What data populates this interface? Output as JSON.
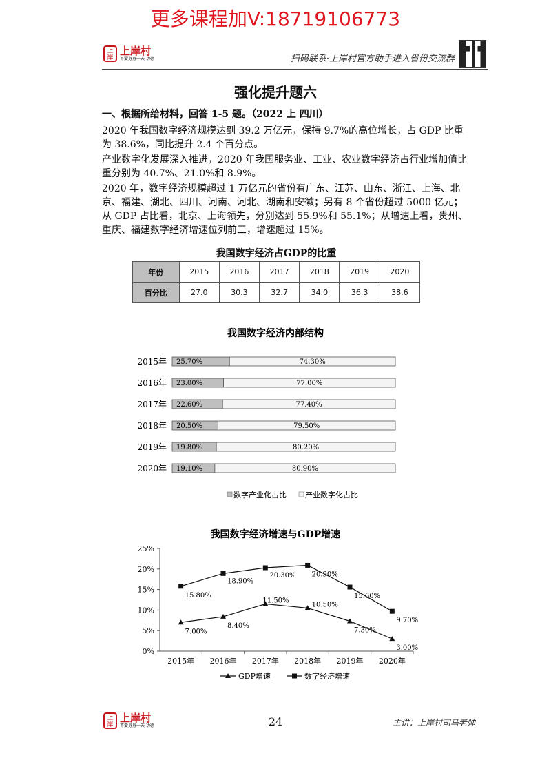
{
  "watermark": "更多课程加V:18719106773",
  "header": {
    "logo_text": "上岸村",
    "logo_sub": "不要身身一天 功德",
    "note": "扫码联系·上岸村官方助手进入省份交流群"
  },
  "title": "强化提升题六",
  "question_head": "一、根据所给材料，回答 1-5 题。（2022 上 四川）",
  "paragraphs": [
    "2020 年我国数字经济规模达到 39.2 万亿元，保持 9.7%的高位增长，占 GDP 比重为 38.6%，同比提升 2.4 个百分点。",
    "产业数字化发展深入推进，2020 年我国服务业、工业、农业数字经济占行业增加值比重分别为 40.7%、21.0%和 8.9%。",
    "2020 年，数字经济规模超过 1 万亿元的省份有广东、江苏、山东、浙江、上海、北京、福建、湖北、四川、河南、河北、湖南和安徽；另有 8 个省份超过 5000 亿元；从 GDP 占比看，北京、上海领先，分别达到 55.9%和 55.1%；从增速上看，贵州、重庆、福建数字经济增速位列前三，增速超过 15%。"
  ],
  "table1": {
    "caption": "我国数字经济占GDP的比重",
    "row1_label": "年份",
    "years": [
      "2015",
      "2016",
      "2017",
      "2018",
      "2019",
      "2020"
    ],
    "row2_label": "百分比",
    "values": [
      "27.0",
      "30.3",
      "32.7",
      "34.0",
      "36.3",
      "38.6"
    ]
  },
  "chart_data": [
    {
      "type": "bar",
      "title": "我国数字经济内部结构",
      "categories": [
        "2015年",
        "2016年",
        "2017年",
        "2018年",
        "2019年",
        "2020年"
      ],
      "series": [
        {
          "name": "数字产业化占比",
          "values": [
            25.7,
            23.0,
            22.6,
            20.5,
            19.8,
            19.1
          ],
          "labels": [
            "25.70%",
            "23.00%",
            "22.60%",
            "20.50%",
            "19.80%",
            "19.10%"
          ],
          "color": "#bfbfbf"
        },
        {
          "name": "产业数字化占比",
          "values": [
            74.3,
            77.0,
            77.4,
            79.5,
            80.2,
            80.9
          ],
          "labels": [
            "74.30%",
            "77.00%",
            "77.40%",
            "79.50%",
            "80.20%",
            "80.90%"
          ],
          "color": "#f4f4f4"
        }
      ],
      "orientation": "horizontal-stacked-100",
      "legend_placement": "bottom"
    },
    {
      "type": "line",
      "title": "我国数字经济增速与GDP增速",
      "categories": [
        "2015年",
        "2016年",
        "2017年",
        "2018年",
        "2019年",
        "2020年"
      ],
      "series": [
        {
          "name": "GDP增速",
          "values": [
            7.0,
            8.4,
            11.5,
            10.5,
            7.3,
            3.0
          ],
          "labels": [
            "7.00%",
            "8.40%",
            "11.50%",
            "10.50%",
            "7.30%",
            "3.00%"
          ],
          "marker": "triangle"
        },
        {
          "name": "数字经济增速",
          "values": [
            15.8,
            18.9,
            20.3,
            20.9,
            15.6,
            9.7
          ],
          "labels": [
            "15.80%",
            "18.90%",
            "20.30%",
            "20.90%",
            "15.60%",
            "9.70%"
          ],
          "marker": "square"
        }
      ],
      "y_ticks": [
        "0%",
        "5%",
        "10%",
        "15%",
        "20%",
        "25%"
      ],
      "ylim": [
        0,
        25
      ],
      "legend_placement": "bottom"
    }
  ],
  "footer": {
    "page_number": "24",
    "logo_text": "上岸村",
    "note": "主讲：上岸村司马老帅"
  }
}
